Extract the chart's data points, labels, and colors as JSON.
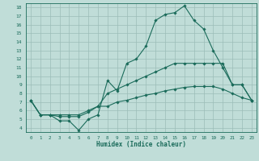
{
  "xlabel": "Humidex (Indice chaleur)",
  "background_color": "#c0ddd8",
  "grid_color": "#9bbdb8",
  "line_color": "#1a6b5a",
  "xlim": [
    -0.5,
    23.5
  ],
  "ylim": [
    3.5,
    18.5
  ],
  "xticks": [
    0,
    1,
    2,
    3,
    4,
    5,
    6,
    7,
    8,
    9,
    10,
    11,
    12,
    13,
    14,
    15,
    16,
    17,
    18,
    19,
    20,
    21,
    22,
    23
  ],
  "yticks": [
    4,
    5,
    6,
    7,
    8,
    9,
    10,
    11,
    12,
    13,
    14,
    15,
    16,
    17,
    18
  ],
  "x": [
    0,
    1,
    2,
    3,
    4,
    5,
    6,
    7,
    8,
    9,
    10,
    11,
    12,
    13,
    14,
    15,
    16,
    17,
    18,
    19,
    20,
    21,
    22,
    23
  ],
  "curve_top": [
    7.2,
    5.5,
    5.5,
    4.8,
    4.8,
    3.7,
    5.0,
    5.5,
    9.5,
    8.3,
    11.5,
    12.0,
    13.5,
    16.5,
    17.2,
    17.4,
    18.2,
    16.5,
    15.5,
    13.0,
    11.0,
    9.0,
    9.0,
    7.2
  ],
  "curve_mid": [
    7.2,
    5.5,
    5.5,
    5.3,
    5.3,
    5.3,
    5.8,
    6.5,
    8.0,
    8.5,
    9.0,
    9.5,
    10.0,
    10.5,
    11.0,
    11.5,
    11.5,
    11.5,
    11.5,
    11.5,
    11.5,
    9.0,
    9.0,
    7.2
  ],
  "curve_bot": [
    7.2,
    5.5,
    5.5,
    5.5,
    5.5,
    5.5,
    6.0,
    6.5,
    6.5,
    7.0,
    7.2,
    7.5,
    7.8,
    8.0,
    8.3,
    8.5,
    8.7,
    8.8,
    8.8,
    8.8,
    8.5,
    8.0,
    7.5,
    7.2
  ]
}
